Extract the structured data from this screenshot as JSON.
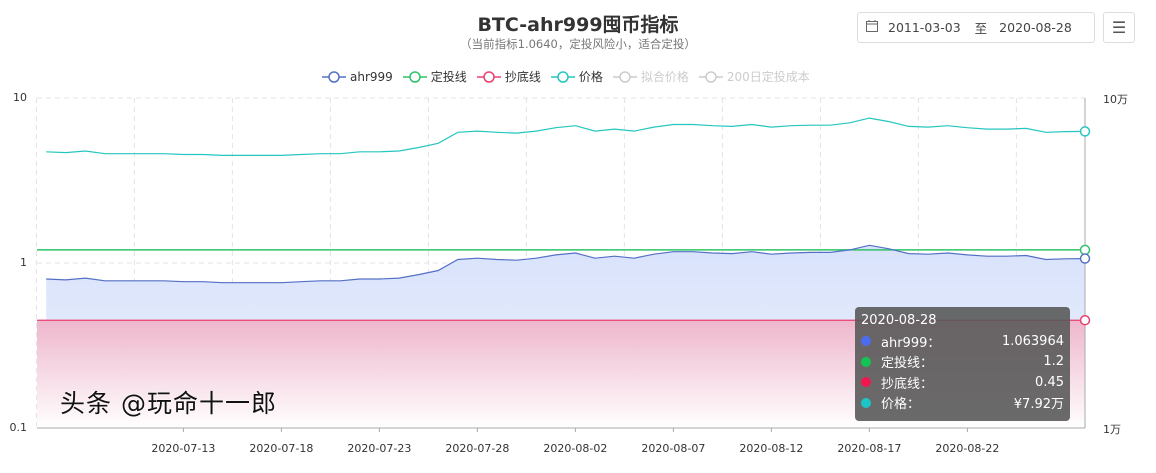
{
  "header": {
    "title": "BTC-ahr999囤币指标",
    "subtitle": "（当前指标1.0640，定投风险小，适合定投）",
    "date_from": "2011-03-03",
    "date_sep": "至",
    "date_to": "2020-08-28",
    "calendar_icon": "calendar-icon",
    "menu_icon": "hamburger-menu-icon"
  },
  "legend": [
    {
      "name": "ahr999",
      "color": "#5470c6",
      "active": true
    },
    {
      "name": "定投线",
      "color": "#2ec26a",
      "active": true
    },
    {
      "name": "抄底线",
      "color": "#e8406f",
      "active": true
    },
    {
      "name": "价格",
      "color": "#26c6c0",
      "active": true
    },
    {
      "name": "拟合价格",
      "color": "#cccccc",
      "active": false
    },
    {
      "name": "200日定投成本",
      "color": "#cccccc",
      "active": false
    }
  ],
  "tooltip": {
    "date": "2020-08-28",
    "rows": [
      {
        "name": "ahr999：",
        "value": "1.063964",
        "color": "#4b6cf0"
      },
      {
        "name": "定投线：",
        "value": "1.2",
        "color": "#12c552"
      },
      {
        "name": "抄底线：",
        "value": "0.45",
        "color": "#f0174f"
      },
      {
        "name": "价格：",
        "value": "¥7.92万",
        "color": "#1cc6c6"
      }
    ]
  },
  "watermark": "头条 @玩命十一郎",
  "chart_data": {
    "type": "line",
    "y_scale": "log",
    "ylim_left": [
      0.1,
      10
    ],
    "ylim_right": [
      10000,
      100000
    ],
    "left_ticks": [
      "10",
      "1",
      "0.1"
    ],
    "right_ticks": [
      "10万",
      "1万"
    ],
    "x_start": "2020-07-06",
    "x_end": "2020-08-28",
    "x_ticks": [
      "2020-07-13",
      "2020-07-18",
      "2020-07-23",
      "2020-07-28",
      "2020-08-02",
      "2020-08-07",
      "2020-08-12",
      "2020-08-17",
      "2020-08-22"
    ],
    "grid": true,
    "legend_position": "top",
    "series": [
      {
        "name": "ahr999",
        "axis": "left",
        "color": "#5470c6",
        "area": true,
        "values": [
          0.8,
          0.79,
          0.81,
          0.78,
          0.78,
          0.78,
          0.78,
          0.77,
          0.77,
          0.76,
          0.76,
          0.76,
          0.76,
          0.77,
          0.78,
          0.78,
          0.8,
          0.8,
          0.81,
          0.85,
          0.9,
          1.05,
          1.07,
          1.05,
          1.04,
          1.07,
          1.12,
          1.15,
          1.07,
          1.1,
          1.07,
          1.13,
          1.17,
          1.17,
          1.15,
          1.14,
          1.17,
          1.13,
          1.15,
          1.16,
          1.16,
          1.2,
          1.28,
          1.22,
          1.14,
          1.13,
          1.15,
          1.12,
          1.1,
          1.1,
          1.11,
          1.05,
          1.06,
          1.063964
        ]
      },
      {
        "name": "定投线",
        "axis": "left",
        "color": "#2ec26a",
        "constant": 1.2
      },
      {
        "name": "抄底线",
        "axis": "left",
        "color": "#e8406f",
        "constant": 0.45,
        "area": true
      },
      {
        "name": "价格",
        "axis": "right",
        "unit": "万",
        "color": "#26c6c0",
        "values": [
          6.87,
          6.83,
          6.91,
          6.78,
          6.78,
          6.78,
          6.78,
          6.74,
          6.74,
          6.7,
          6.7,
          6.7,
          6.7,
          6.74,
          6.78,
          6.78,
          6.87,
          6.87,
          6.91,
          7.08,
          7.29,
          7.87,
          7.94,
          7.87,
          7.83,
          7.94,
          8.13,
          8.24,
          7.94,
          8.05,
          7.94,
          8.16,
          8.31,
          8.31,
          8.24,
          8.2,
          8.31,
          8.16,
          8.24,
          8.27,
          8.27,
          8.41,
          8.69,
          8.48,
          8.2,
          8.16,
          8.24,
          8.13,
          8.05,
          8.05,
          8.09,
          7.87,
          7.91,
          7.92
        ]
      }
    ]
  }
}
